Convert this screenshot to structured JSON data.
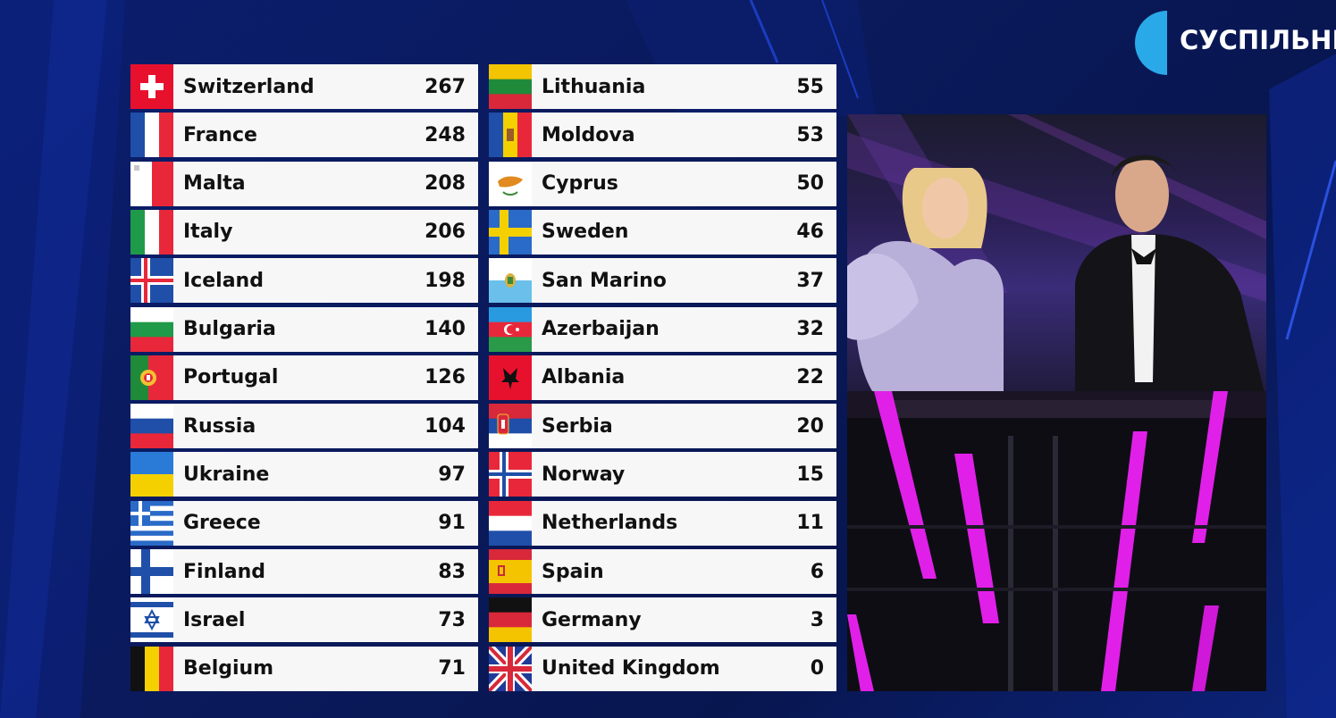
{
  "channel": {
    "logo_text": "СУСПІЛЬНЕ"
  },
  "colors": {
    "background": "#0a1a5c",
    "row_bg": "#f7f7f8",
    "text": "#111111",
    "logo_accent": "#2aa9e8",
    "stage_neon": "#e020e8"
  },
  "scoreboard": {
    "left_column": [
      {
        "country": "Switzerland",
        "points": "267",
        "flag": "switzerland-flag-icon"
      },
      {
        "country": "France",
        "points": "248",
        "flag": "france-flag-icon"
      },
      {
        "country": "Malta",
        "points": "208",
        "flag": "malta-flag-icon"
      },
      {
        "country": "Italy",
        "points": "206",
        "flag": "italy-flag-icon"
      },
      {
        "country": "Iceland",
        "points": "198",
        "flag": "iceland-flag-icon"
      },
      {
        "country": "Bulgaria",
        "points": "140",
        "flag": "bulgaria-flag-icon"
      },
      {
        "country": "Portugal",
        "points": "126",
        "flag": "portugal-flag-icon"
      },
      {
        "country": "Russia",
        "points": "104",
        "flag": "russia-flag-icon"
      },
      {
        "country": "Ukraine",
        "points": "97",
        "flag": "ukraine-flag-icon"
      },
      {
        "country": "Greece",
        "points": "91",
        "flag": "greece-flag-icon"
      },
      {
        "country": "Finland",
        "points": "83",
        "flag": "finland-flag-icon"
      },
      {
        "country": "Israel",
        "points": "73",
        "flag": "israel-flag-icon"
      },
      {
        "country": "Belgium",
        "points": "71",
        "flag": "belgium-flag-icon"
      }
    ],
    "right_column": [
      {
        "country": "Lithuania",
        "points": "55",
        "flag": "lithuania-flag-icon"
      },
      {
        "country": "Moldova",
        "points": "53",
        "flag": "moldova-flag-icon"
      },
      {
        "country": "Cyprus",
        "points": "50",
        "flag": "cyprus-flag-icon"
      },
      {
        "country": "Sweden",
        "points": "46",
        "flag": "sweden-flag-icon"
      },
      {
        "country": "San Marino",
        "points": "37",
        "flag": "san-marino-flag-icon"
      },
      {
        "country": "Azerbaijan",
        "points": "32",
        "flag": "azerbaijan-flag-icon"
      },
      {
        "country": "Albania",
        "points": "22",
        "flag": "albania-flag-icon"
      },
      {
        "country": "Serbia",
        "points": "20",
        "flag": "serbia-flag-icon"
      },
      {
        "country": "Norway",
        "points": "15",
        "flag": "norway-flag-icon"
      },
      {
        "country": "Netherlands",
        "points": "11",
        "flag": "netherlands-flag-icon"
      },
      {
        "country": "Spain",
        "points": "6",
        "flag": "spain-flag-icon"
      },
      {
        "country": "Germany",
        "points": "3",
        "flag": "germany-flag-icon"
      },
      {
        "country": "United Kingdom",
        "points": "0",
        "flag": "united-kingdom-flag-icon"
      }
    ]
  }
}
